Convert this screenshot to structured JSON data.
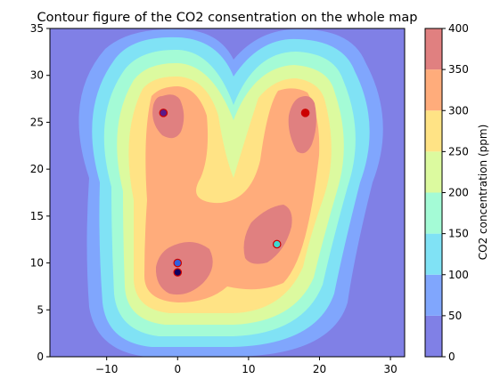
{
  "chart_data": {
    "type": "contour",
    "title": "Contour figure of the CO2 consentration on the whole map",
    "xlabel": "",
    "ylabel": "",
    "xlim": [
      -18,
      32
    ],
    "ylim": [
      0,
      35
    ],
    "x_ticks": [
      -10,
      0,
      10,
      20,
      30
    ],
    "y_ticks": [
      0,
      5,
      10,
      15,
      20,
      25,
      30,
      35
    ],
    "colorbar": {
      "label": "CO2 concentration (ppm)",
      "levels": [
        0,
        50,
        100,
        150,
        200,
        250,
        300,
        350,
        400
      ],
      "colors": [
        "#8080e6",
        "#80a6fd",
        "#80e2f5",
        "#a4fbd6",
        "#dcfa9f",
        "#ffe385",
        "#ffac7b",
        "#e08080"
      ]
    },
    "background_color": "#8080e6",
    "sources": [
      {
        "x": -2,
        "y": 26,
        "value": 400,
        "fill": "#5a1a8a",
        "edge": "#cc0000"
      },
      {
        "x": 18,
        "y": 26,
        "value": 400,
        "fill": "#cc0000",
        "edge": "#cc0000"
      },
      {
        "x": 14,
        "y": 12,
        "value": 370,
        "fill": "#40d8d0",
        "edge": "#cc0000"
      },
      {
        "x": 0,
        "y": 10,
        "value": 380,
        "fill": "#3060e0",
        "edge": "#cc0000"
      },
      {
        "x": 0,
        "y": 9,
        "value": 380,
        "fill": "#100060",
        "edge": "#cc0000"
      }
    ]
  }
}
